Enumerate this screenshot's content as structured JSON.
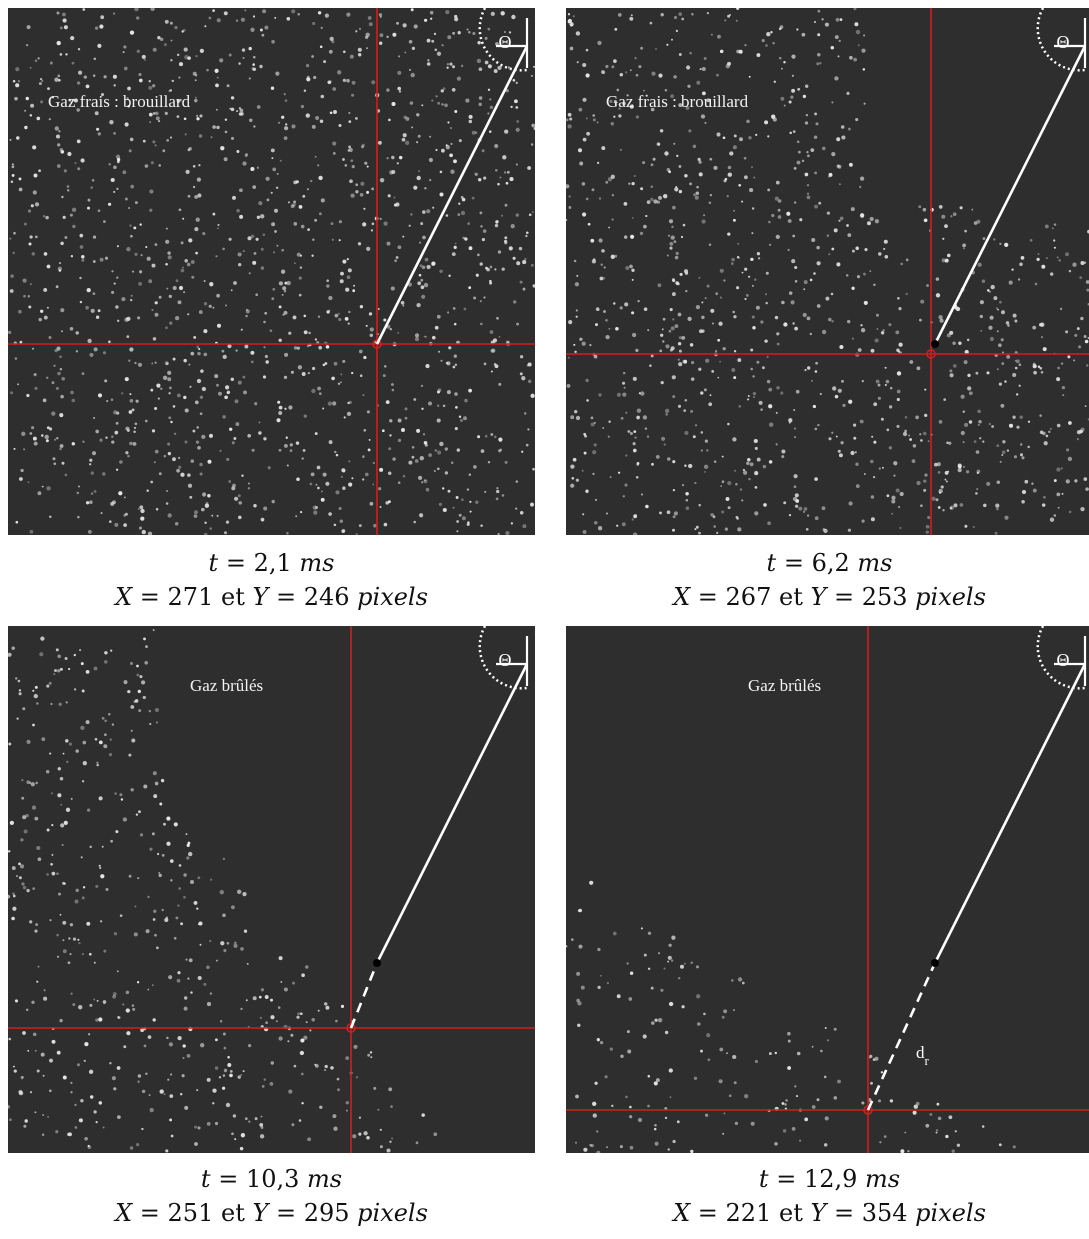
{
  "panels": [
    {
      "id": "p1",
      "region_label": "Gaz frais : brouillard",
      "caption": {
        "t_var": "t",
        "t_value": "2,1",
        "t_unit": "ms",
        "x_var": "X",
        "x_value": "271",
        "conj": "et",
        "y_var": "Y",
        "y_value": "246",
        "xy_unit": "pixels"
      },
      "theta_symbol": "Θ"
    },
    {
      "id": "p2",
      "region_label": "Gaz frais : brouillard",
      "caption": {
        "t_var": "t",
        "t_value": "6,2",
        "t_unit": "ms",
        "x_var": "X",
        "x_value": "267",
        "conj": "et",
        "y_var": "Y",
        "y_value": "253",
        "xy_unit": "pixels"
      },
      "theta_symbol": "Θ"
    },
    {
      "id": "p3",
      "region_label": "Gaz brûlés",
      "caption": {
        "t_var": "t",
        "t_value": "10,3",
        "t_unit": "ms",
        "x_var": "X",
        "x_value": "251",
        "conj": "et",
        "y_var": "Y",
        "y_value": "295",
        "xy_unit": "pixels"
      },
      "theta_symbol": "Θ"
    },
    {
      "id": "p4",
      "region_label": "Gaz brûlés",
      "caption": {
        "t_var": "t",
        "t_value": "12,9",
        "t_unit": "ms",
        "x_var": "X",
        "x_value": "221",
        "conj": "et",
        "y_var": "Y",
        "y_value": "354",
        "xy_unit": "pixels"
      },
      "theta_symbol": "Θ",
      "distance_label": "d",
      "distance_subscript": "r"
    }
  ],
  "colors": {
    "background": "#2e2e2e",
    "droplet": "#e6e6e6",
    "crosshair": "#d21e1e",
    "radius_line": "#ffffff",
    "marker": "#000000"
  }
}
